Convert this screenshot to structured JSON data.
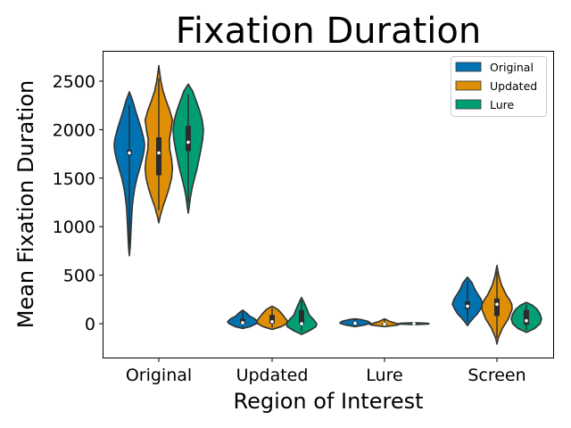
{
  "chart_data": {
    "type": "violin",
    "title": "Fixation Duration",
    "xlabel": "Region of Interest",
    "ylabel": "Mean Fixation Duration",
    "ylim": [
      -350,
      2830
    ],
    "yticks": [
      0,
      500,
      1000,
      1500,
      2000,
      2500
    ],
    "categories": [
      "Original",
      "Updated",
      "Lure",
      "Screen"
    ],
    "legend": {
      "position": "top-right",
      "entries": [
        "Original",
        "Updated",
        "Lure"
      ]
    },
    "colors": {
      "Original": "#0173b2",
      "Updated": "#de8f05",
      "Lure": "#029e73",
      "outline": "#333333",
      "box": "#2b2b2b"
    },
    "series": [
      {
        "name": "Original",
        "violins": [
          {
            "category": "Original",
            "min": 700,
            "q1": 1740,
            "median": 1760,
            "q3": 1790,
            "max": 2390,
            "profile": [
              [
                700,
                0.0
              ],
              [
                800,
                0.06
              ],
              [
                900,
                0.09
              ],
              [
                1000,
                0.12
              ],
              [
                1100,
                0.15
              ],
              [
                1200,
                0.19
              ],
              [
                1300,
                0.26
              ],
              [
                1400,
                0.36
              ],
              [
                1500,
                0.5
              ],
              [
                1600,
                0.68
              ],
              [
                1700,
                0.86
              ],
              [
                1750,
                0.93
              ],
              [
                1800,
                0.98
              ],
              [
                1850,
                1.0
              ],
              [
                1900,
                0.96
              ],
              [
                2000,
                0.8
              ],
              [
                2100,
                0.6
              ],
              [
                2200,
                0.4
              ],
              [
                2300,
                0.22
              ],
              [
                2390,
                0.0
              ]
            ]
          },
          {
            "category": "Updated",
            "min": -50,
            "q1": 0,
            "median": 10,
            "q3": 50,
            "max": 140,
            "profile": [
              [
                -50,
                0.0
              ],
              [
                -30,
                0.5
              ],
              [
                0,
                0.9
              ],
              [
                20,
                1.0
              ],
              [
                50,
                0.8
              ],
              [
                80,
                0.45
              ],
              [
                110,
                0.25
              ],
              [
                140,
                0.0
              ]
            ]
          },
          {
            "category": "Lure",
            "min": -30,
            "q1": -5,
            "median": 5,
            "q3": 20,
            "max": 50,
            "profile": [
              [
                -30,
                0.0
              ],
              [
                -15,
                0.6
              ],
              [
                0,
                0.95
              ],
              [
                10,
                1.0
              ],
              [
                25,
                0.85
              ],
              [
                40,
                0.45
              ],
              [
                50,
                0.0
              ]
            ]
          },
          {
            "category": "Screen",
            "min": -20,
            "q1": 150,
            "median": 180,
            "q3": 230,
            "max": 480,
            "profile": [
              [
                -20,
                0.0
              ],
              [
                20,
                0.18
              ],
              [
                60,
                0.4
              ],
              [
                100,
                0.65
              ],
              [
                150,
                0.85
              ],
              [
                200,
                1.0
              ],
              [
                250,
                0.9
              ],
              [
                300,
                0.7
              ],
              [
                350,
                0.5
              ],
              [
                420,
                0.3
              ],
              [
                480,
                0.0
              ]
            ]
          }
        ]
      },
      {
        "name": "Updated",
        "violins": [
          {
            "category": "Original",
            "min": 1040,
            "q1": 1530,
            "median": 1760,
            "q3": 1920,
            "max": 2660,
            "profile": [
              [
                1040,
                0.0
              ],
              [
                1100,
                0.08
              ],
              [
                1200,
                0.26
              ],
              [
                1300,
                0.48
              ],
              [
                1400,
                0.68
              ],
              [
                1500,
                0.84
              ],
              [
                1600,
                0.9
              ],
              [
                1700,
                0.84
              ],
              [
                1800,
                0.72
              ],
              [
                1900,
                0.7
              ],
              [
                2000,
                0.82
              ],
              [
                2100,
                0.9
              ],
              [
                2200,
                0.72
              ],
              [
                2300,
                0.48
              ],
              [
                2400,
                0.27
              ],
              [
                2500,
                0.14
              ],
              [
                2600,
                0.05
              ],
              [
                2660,
                0.0
              ]
            ]
          },
          {
            "category": "Updated",
            "min": -60,
            "q1": 0,
            "median": 20,
            "q3": 90,
            "max": 180,
            "profile": [
              [
                -60,
                0.0
              ],
              [
                -30,
                0.6
              ],
              [
                0,
                0.95
              ],
              [
                30,
                1.0
              ],
              [
                70,
                0.8
              ],
              [
                110,
                0.6
              ],
              [
                150,
                0.35
              ],
              [
                180,
                0.0
              ]
            ]
          },
          {
            "category": "Lure",
            "min": -30,
            "q1": -15,
            "median": -5,
            "q3": 5,
            "max": 50,
            "profile": [
              [
                -30,
                0.0
              ],
              [
                -15,
                0.85
              ],
              [
                -5,
                1.0
              ],
              [
                5,
                0.75
              ],
              [
                20,
                0.4
              ],
              [
                35,
                0.2
              ],
              [
                50,
                0.0
              ]
            ]
          },
          {
            "category": "Screen",
            "min": -210,
            "q1": 80,
            "median": 200,
            "q3": 260,
            "max": 600,
            "profile": [
              [
                -210,
                0.0
              ],
              [
                -150,
                0.08
              ],
              [
                -50,
                0.35
              ],
              [
                50,
                0.75
              ],
              [
                150,
                1.0
              ],
              [
                200,
                0.98
              ],
              [
                250,
                0.82
              ],
              [
                300,
                0.6
              ],
              [
                400,
                0.3
              ],
              [
                500,
                0.12
              ],
              [
                600,
                0.0
              ]
            ]
          }
        ]
      },
      {
        "name": "Lure",
        "violins": [
          {
            "category": "Original",
            "min": 1140,
            "q1": 1780,
            "median": 1870,
            "q3": 2040,
            "max": 2470,
            "profile": [
              [
                1140,
                0.0
              ],
              [
                1200,
                0.06
              ],
              [
                1300,
                0.14
              ],
              [
                1400,
                0.26
              ],
              [
                1500,
                0.42
              ],
              [
                1600,
                0.58
              ],
              [
                1700,
                0.72
              ],
              [
                1800,
                0.84
              ],
              [
                1900,
                0.95
              ],
              [
                2000,
                1.0
              ],
              [
                2100,
                0.92
              ],
              [
                2200,
                0.74
              ],
              [
                2300,
                0.52
              ],
              [
                2400,
                0.28
              ],
              [
                2470,
                0.0
              ]
            ]
          },
          {
            "category": "Updated",
            "min": -110,
            "q1": -10,
            "median": 0,
            "q3": 140,
            "max": 270,
            "profile": [
              [
                -110,
                0.0
              ],
              [
                -70,
                0.55
              ],
              [
                -30,
                0.95
              ],
              [
                0,
                1.0
              ],
              [
                40,
                0.8
              ],
              [
                90,
                0.5
              ],
              [
                140,
                0.38
              ],
              [
                200,
                0.22
              ],
              [
                270,
                0.0
              ]
            ]
          },
          {
            "category": "Lure",
            "min": -10,
            "q1": -5,
            "median": 0,
            "q3": 5,
            "max": 10,
            "profile": [
              [
                -10,
                0.0
              ],
              [
                -5,
                0.9
              ],
              [
                0,
                1.0
              ],
              [
                5,
                0.9
              ],
              [
                10,
                0.0
              ]
            ]
          },
          {
            "category": "Screen",
            "min": -90,
            "q1": -10,
            "median": 30,
            "q3": 140,
            "max": 220,
            "profile": [
              [
                -90,
                0.0
              ],
              [
                -50,
                0.55
              ],
              [
                0,
                0.9
              ],
              [
                50,
                1.0
              ],
              [
                100,
                0.9
              ],
              [
                150,
                0.7
              ],
              [
                190,
                0.4
              ],
              [
                220,
                0.0
              ]
            ]
          }
        ]
      }
    ]
  }
}
